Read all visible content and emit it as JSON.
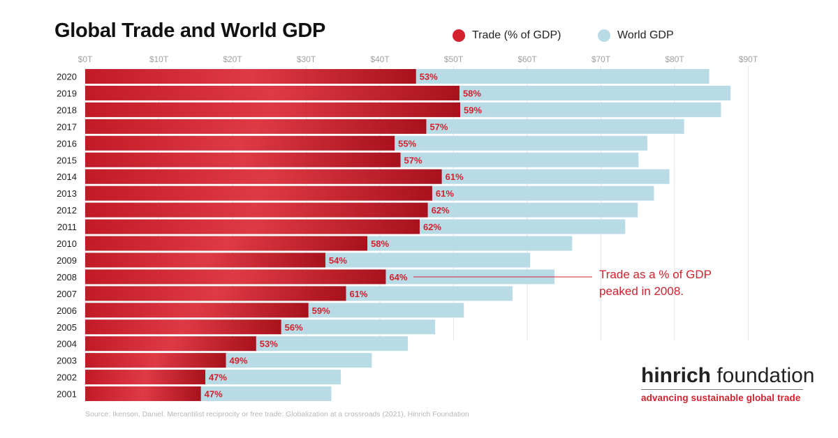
{
  "title": "Global Trade and World GDP",
  "legend": [
    {
      "label": "Trade (% of GDP)",
      "color": "#d3212d"
    },
    {
      "label": "World GDP",
      "color": "#b9dbe6"
    }
  ],
  "annotation": {
    "line1": "Trade as a % of GDP",
    "line2": "peaked in 2008."
  },
  "logo": {
    "brand_bold": "hinrich",
    "brand_rest": " foundation",
    "tagline": "advancing sustainable global trade"
  },
  "source": "Source: Ikenson, Daniel. Mercantilist reciprocity or free trade: Globalization at a crossroads (2021), Hinrich Foundation",
  "colors": {
    "trade": "#d3212d",
    "gdp": "#b9dbe6",
    "label": "#d3212d",
    "grid": "#e3e3e3"
  },
  "chart_data": {
    "type": "bar",
    "orientation": "horizontal",
    "xlim": [
      0,
      90
    ],
    "x_ticks": [
      "$0T",
      "$10T",
      "$20T",
      "$30T",
      "$40T",
      "$50T",
      "$60T",
      "$70T",
      "$80T",
      "$90T"
    ],
    "grid": true,
    "legend_position": "top-right",
    "categories": [
      "2020",
      "2019",
      "2018",
      "2017",
      "2016",
      "2015",
      "2014",
      "2013",
      "2012",
      "2011",
      "2010",
      "2009",
      "2008",
      "2007",
      "2006",
      "2005",
      "2004",
      "2003",
      "2002",
      "2001"
    ],
    "series": [
      {
        "name": "World GDP",
        "values": [
          84.7,
          87.6,
          86.3,
          81.3,
          76.3,
          75.1,
          79.3,
          77.2,
          75.0,
          73.3,
          66.1,
          60.4,
          63.7,
          58.0,
          51.4,
          47.5,
          43.8,
          38.9,
          34.7,
          33.4
        ]
      },
      {
        "name": "Trade (% of GDP)",
        "values": [
          44.9,
          50.8,
          50.9,
          46.3,
          42.0,
          42.8,
          48.4,
          47.1,
          46.5,
          45.4,
          38.3,
          32.6,
          40.8,
          35.4,
          30.3,
          26.6,
          23.2,
          19.1,
          16.3,
          15.7
        ]
      }
    ],
    "data_labels": [
      "53%",
      "58%",
      "59%",
      "57%",
      "55%",
      "57%",
      "61%",
      "61%",
      "62%",
      "62%",
      "58%",
      "54%",
      "64%",
      "61%",
      "59%",
      "56%",
      "53%",
      "49%",
      "47%",
      "47%"
    ]
  }
}
